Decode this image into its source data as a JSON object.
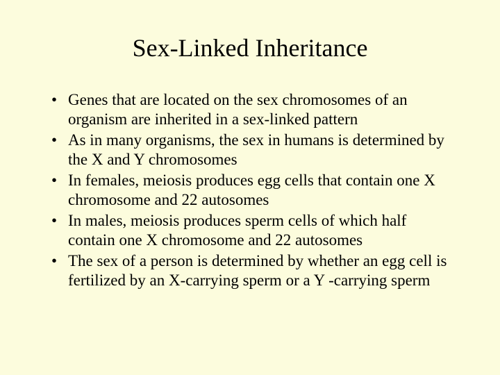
{
  "slide": {
    "background_color": "#fcfcdd",
    "text_color": "#000000",
    "font_family": "Times New Roman",
    "title": "Sex-Linked Inheritance",
    "title_fontsize": 36,
    "body_fontsize": 23,
    "bullets": [
      "Genes that are located on the sex chromosomes of an organism are inherited in a sex-linked pattern",
      "As in many organisms, the sex in humans is determined by the X and Y chromosomes",
      "In females, meiosis produces egg cells that contain one X chromosome and 22 autosomes",
      "In males, meiosis produces sperm cells of which half contain one X chromosome and 22 autosomes",
      "The sex of a person is determined by whether an egg cell is fertilized by an X-carrying sperm or a Y -carrying sperm"
    ]
  }
}
